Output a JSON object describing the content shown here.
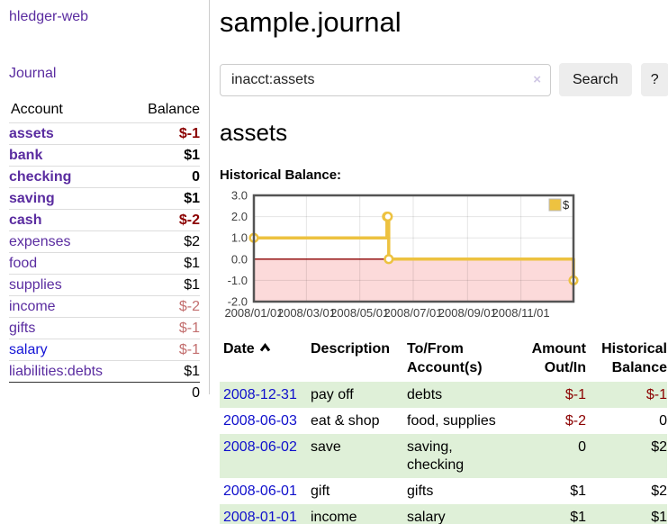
{
  "colors": {
    "link_purple": "#5a2ca0",
    "link_blue": "#1515d6",
    "date_link_blue": "#0f0fcc",
    "negative_dark": "#8b0000",
    "negative_soft": "#c36f6f",
    "row_stripe_green": "#dff0d8",
    "chart_series_yellow": "#edc240",
    "chart_negative_fill": "#fcdada",
    "chart_zero_line": "#8b0000",
    "chart_border": "#545454"
  },
  "sidebar": {
    "brand": "hledger-web",
    "journal_link": "Journal",
    "accounts": {
      "headers": {
        "account": "Account",
        "balance": "Balance"
      },
      "rows": [
        {
          "label": "assets",
          "balance": "$-1",
          "depth": 1,
          "bold": true,
          "balance_style": "neg-strong",
          "link_style": "purple"
        },
        {
          "label": "bank",
          "balance": "$1",
          "depth": 2,
          "bold": true,
          "balance_style": "plain",
          "link_style": "purple"
        },
        {
          "label": "checking",
          "balance": "0",
          "depth": 3,
          "bold": true,
          "balance_style": "plain",
          "link_style": "purple"
        },
        {
          "label": "saving",
          "balance": "$1",
          "depth": 3,
          "bold": true,
          "balance_style": "plain",
          "link_style": "purple"
        },
        {
          "label": "cash",
          "balance": "$-2",
          "depth": 2,
          "bold": true,
          "balance_style": "neg-strong",
          "link_style": "purple"
        },
        {
          "label": "expenses",
          "balance": "$2",
          "depth": 1,
          "bold": false,
          "balance_style": "plain",
          "link_style": "purple"
        },
        {
          "label": "food",
          "balance": "$1",
          "depth": 2,
          "bold": false,
          "balance_style": "plain",
          "link_style": "purple"
        },
        {
          "label": "supplies",
          "balance": "$1",
          "depth": 2,
          "bold": false,
          "balance_style": "plain",
          "link_style": "purple"
        },
        {
          "label": "income",
          "balance": "$-2",
          "depth": 1,
          "bold": false,
          "balance_style": "neg-soft",
          "link_style": "purple"
        },
        {
          "label": "gifts",
          "balance": "$-1",
          "depth": 2,
          "bold": false,
          "balance_style": "neg-soft",
          "link_style": "purple"
        },
        {
          "label": "salary",
          "balance": "$-1",
          "depth": 2,
          "bold": false,
          "balance_style": "neg-soft",
          "link_style": "blue"
        },
        {
          "label": "liabilities:debts",
          "balance": "$1",
          "depth": 1,
          "bold": false,
          "balance_style": "plain",
          "link_style": "purple"
        }
      ],
      "total": "0"
    }
  },
  "main": {
    "title": "sample.journal",
    "search": {
      "query": "inacct:assets",
      "clear_glyph": "×",
      "search_button": "Search",
      "help_button": "?"
    },
    "account_heading": "assets",
    "chart_heading": "Historical Balance:"
  },
  "chart_data": {
    "type": "line",
    "step": true,
    "title": "Historical Balance:",
    "xlabel": "",
    "ylabel": "",
    "x_range": [
      "2008-01-01",
      "2008-12-31"
    ],
    "ylim": [
      -2,
      3
    ],
    "x_ticks": [
      "2008/01/01",
      "2008/03/01",
      "2008/05/01",
      "2008/07/01",
      "2008/09/01",
      "2008/11/01"
    ],
    "y_ticks": [
      3.0,
      2.0,
      1.0,
      0.0,
      -1.0,
      -2.0
    ],
    "grid": true,
    "legend_position": "top-right",
    "series": [
      {
        "name": "$",
        "color": "#edc240",
        "points": [
          [
            "2008-01-01",
            1
          ],
          [
            "2008-06-01",
            2
          ],
          [
            "2008-06-02",
            2
          ],
          [
            "2008-06-03",
            0
          ],
          [
            "2008-12-31",
            -1
          ]
        ]
      }
    ],
    "negative_fill": "#fcdada",
    "zero_line_color": "#8b0000"
  },
  "register": {
    "headers": [
      "Date",
      "Description",
      "To/From Account(s)",
      "Amount Out/In",
      "Historical Balance"
    ],
    "sort_icon": "chevron-up-icon",
    "rows": [
      {
        "date": "2008-12-31",
        "description": "pay off",
        "accounts": "debts",
        "amount": "$-1",
        "amount_negative": true,
        "balance": "$-1",
        "balance_negative": true
      },
      {
        "date": "2008-06-03",
        "description": "eat & shop",
        "accounts": "food, supplies",
        "amount": "$-2",
        "amount_negative": true,
        "balance": "0",
        "balance_negative": false
      },
      {
        "date": "2008-06-02",
        "description": "save",
        "accounts": "saving, checking",
        "amount": "0",
        "amount_negative": false,
        "balance": "$2",
        "balance_negative": false
      },
      {
        "date": "2008-06-01",
        "description": "gift",
        "accounts": "gifts",
        "amount": "$1",
        "amount_negative": false,
        "balance": "$2",
        "balance_negative": false
      },
      {
        "date": "2008-01-01",
        "description": "income",
        "accounts": "salary",
        "amount": "$1",
        "amount_negative": false,
        "balance": "$1",
        "balance_negative": false
      }
    ]
  }
}
